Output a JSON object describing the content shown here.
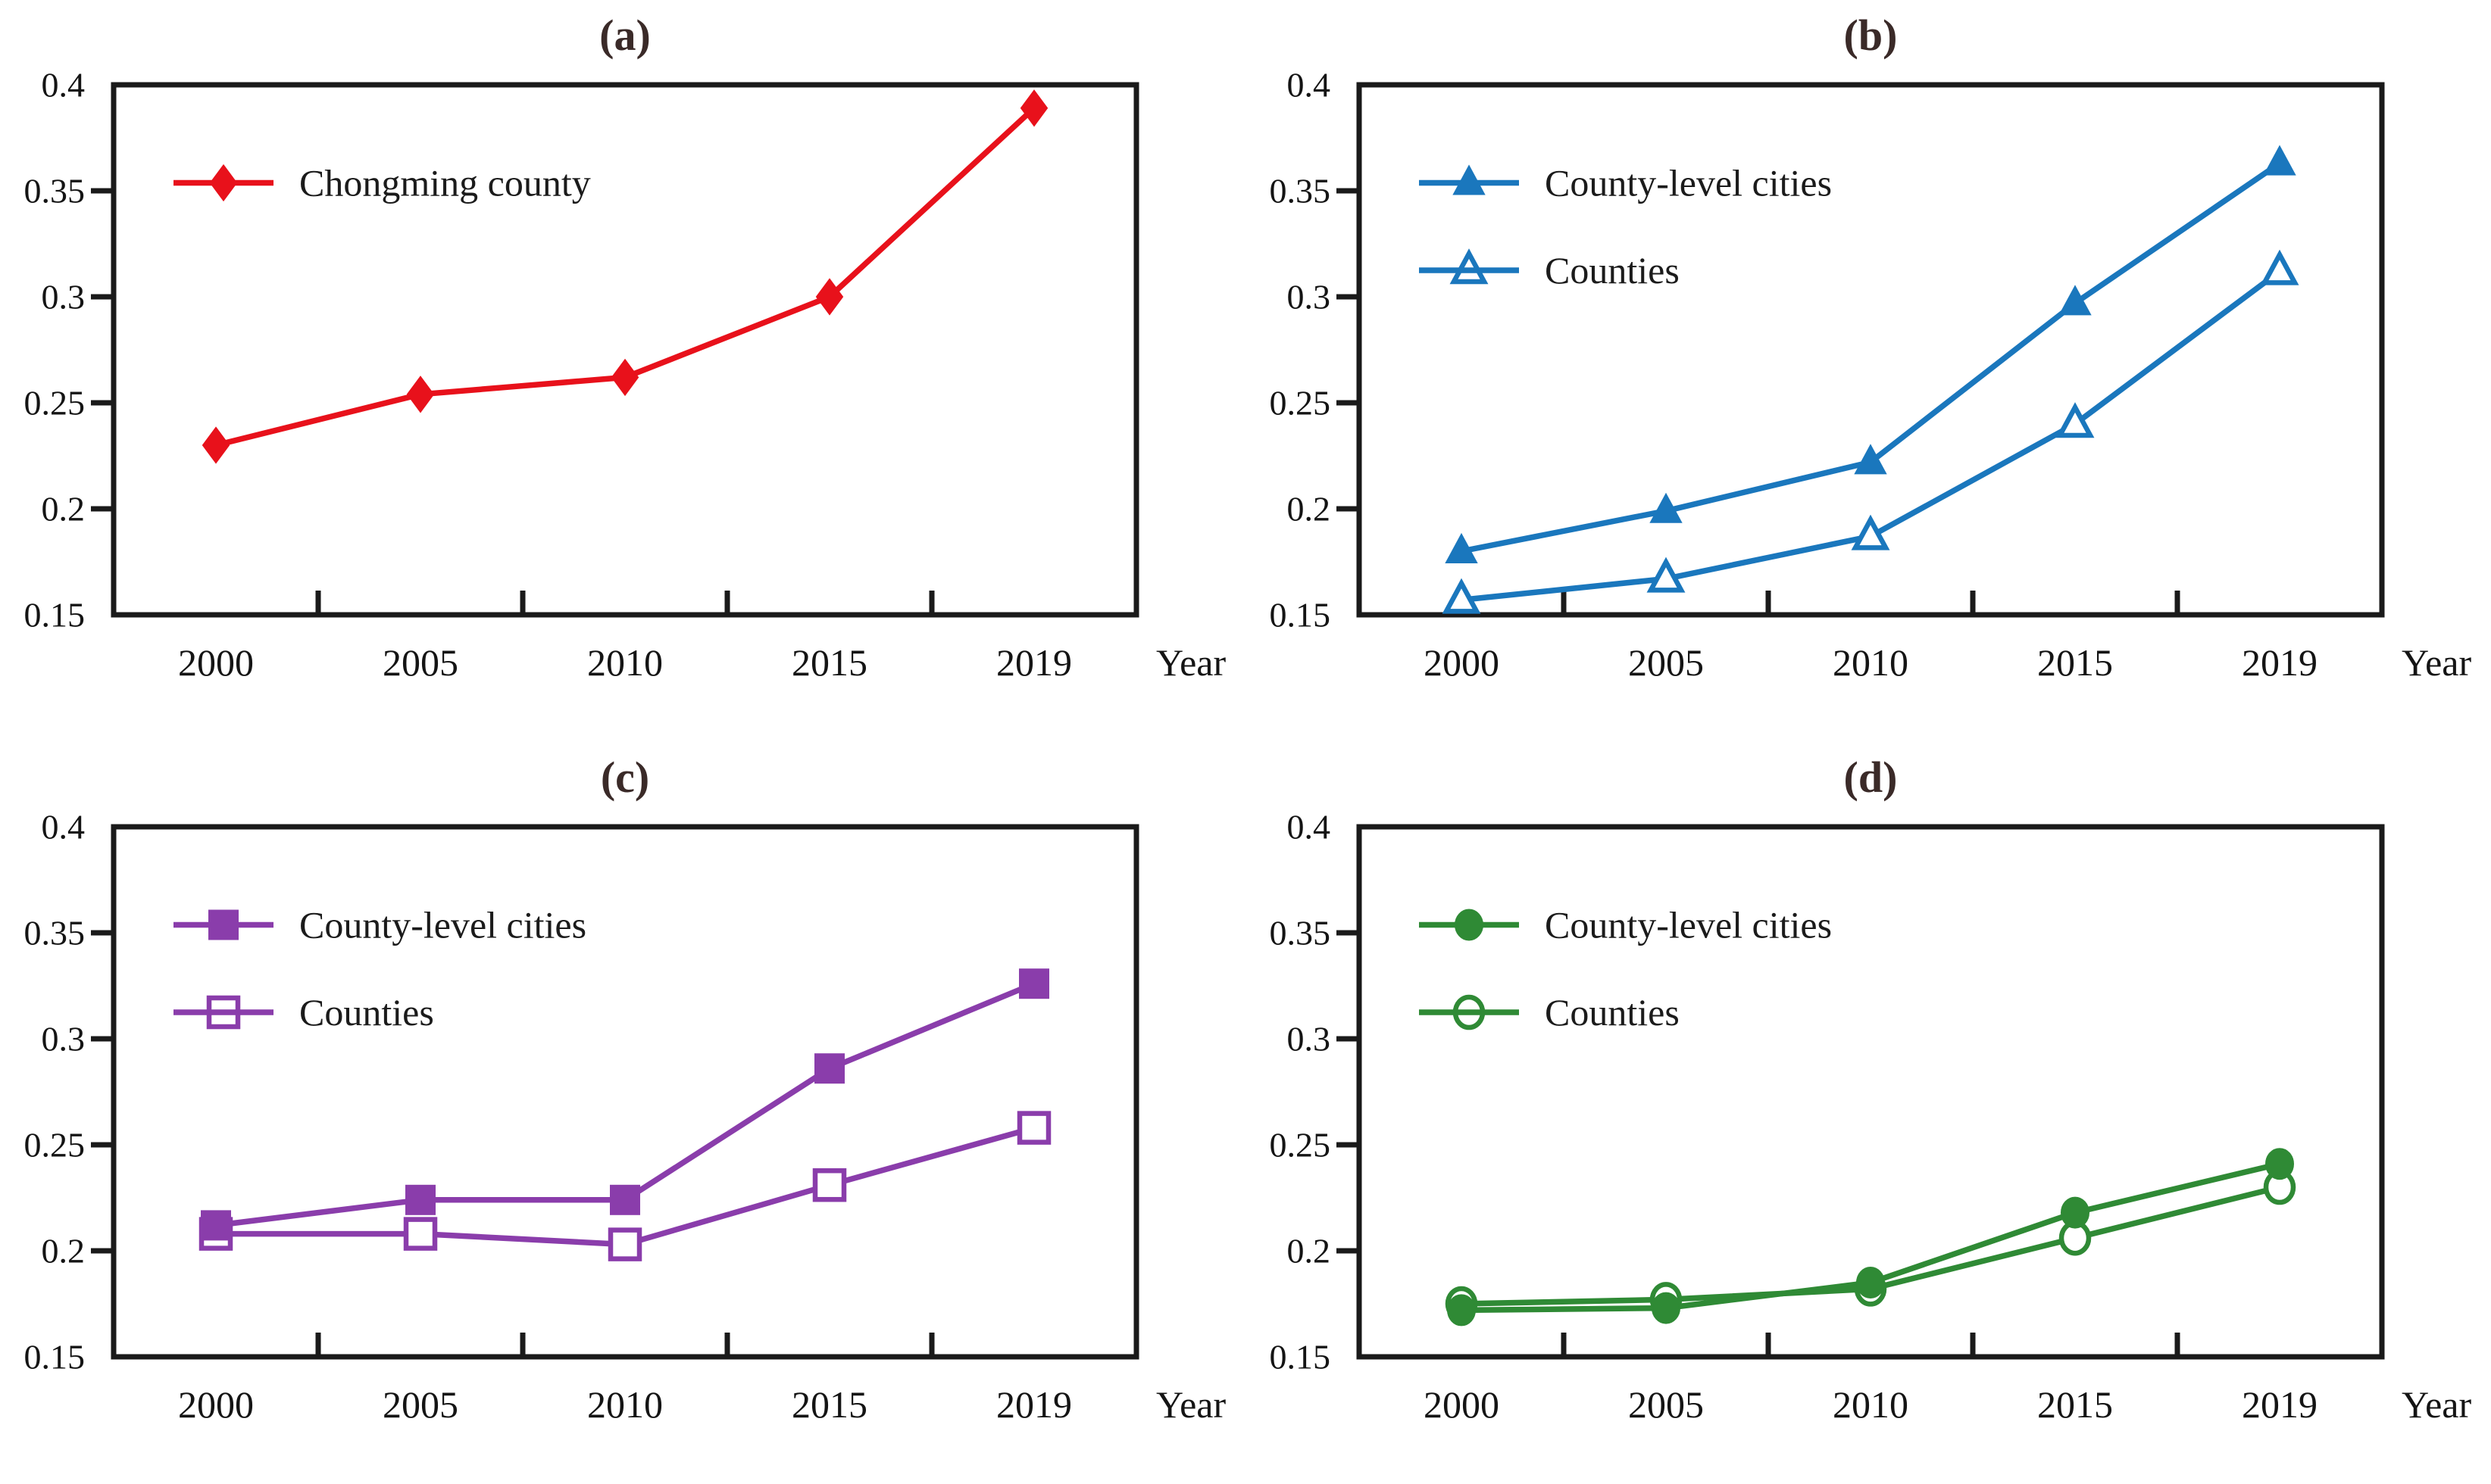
{
  "figure": {
    "background": "#ffffff",
    "axis_color": "#1a1a1a",
    "text_color": "#141414",
    "title_color": "#3a2a28"
  },
  "chart_data": [
    {
      "id": "a",
      "title": "(a)",
      "type": "line",
      "categories": [
        "2000",
        "2005",
        "2010",
        "2015",
        "2019"
      ],
      "xlabel": "Year",
      "ylabel": "",
      "ylim": [
        0.15,
        0.4
      ],
      "y_tick_step": 0.05,
      "y_tick_labels": [
        "0.4",
        "0.35",
        "0.3",
        "0.25",
        "0.2",
        "0.15"
      ],
      "grid": false,
      "legend_position": "upper-left-inside",
      "series": [
        {
          "name": "Chongming county",
          "color": "#e8111b",
          "marker": "diamond",
          "marker_fill": "filled",
          "values": [
            0.23,
            0.254,
            0.262,
            0.3,
            0.389
          ]
        }
      ]
    },
    {
      "id": "b",
      "title": "(b)",
      "type": "line",
      "categories": [
        "2000",
        "2005",
        "2010",
        "2015",
        "2019"
      ],
      "xlabel": "Year",
      "ylabel": "",
      "ylim": [
        0.15,
        0.4
      ],
      "y_tick_step": 0.05,
      "y_tick_labels": [
        "0.4",
        "0.35",
        "0.3",
        "0.25",
        "0.2",
        "0.15"
      ],
      "grid": false,
      "legend_position": "upper-left-inside",
      "series": [
        {
          "name": "County-level cities",
          "color": "#1a77bd",
          "marker": "triangle",
          "marker_fill": "filled",
          "values": [
            0.18,
            0.199,
            0.222,
            0.297,
            0.363
          ]
        },
        {
          "name": "Counties",
          "color": "#1a77bd",
          "marker": "triangle",
          "marker_fill": "open",
          "values": [
            0.157,
            0.167,
            0.187,
            0.24,
            0.312
          ]
        }
      ]
    },
    {
      "id": "c",
      "title": "(c)",
      "type": "line",
      "categories": [
        "2000",
        "2005",
        "2010",
        "2015",
        "2019"
      ],
      "xlabel": "Year",
      "ylabel": "",
      "ylim": [
        0.15,
        0.4
      ],
      "y_tick_step": 0.05,
      "y_tick_labels": [
        "0.4",
        "0.35",
        "0.3",
        "0.25",
        "0.2",
        "0.15"
      ],
      "grid": false,
      "legend_position": "upper-left-inside",
      "series": [
        {
          "name": "County-level cities",
          "color": "#8a3dab",
          "marker": "square",
          "marker_fill": "filled",
          "values": [
            0.212,
            0.224,
            0.224,
            0.286,
            0.326
          ]
        },
        {
          "name": "Counties",
          "color": "#8a3dab",
          "marker": "square",
          "marker_fill": "open",
          "values": [
            0.208,
            0.208,
            0.203,
            0.231,
            0.258
          ]
        }
      ]
    },
    {
      "id": "d",
      "title": "(d)",
      "type": "line",
      "categories": [
        "2000",
        "2005",
        "2010",
        "2015",
        "2019"
      ],
      "xlabel": "Year",
      "ylabel": "",
      "ylim": [
        0.15,
        0.4
      ],
      "y_tick_step": 0.05,
      "y_tick_labels": [
        "0.4",
        "0.35",
        "0.3",
        "0.25",
        "0.2",
        "0.15"
      ],
      "grid": false,
      "legend_position": "upper-left-inside",
      "series": [
        {
          "name": "County-level cities",
          "color": "#2f8a35",
          "marker": "circle",
          "marker_fill": "filled",
          "values": [
            0.172,
            0.173,
            0.185,
            0.218,
            0.241
          ]
        },
        {
          "name": "Counties",
          "color": "#2f8a35",
          "marker": "circle",
          "marker_fill": "open",
          "values": [
            0.175,
            0.177,
            0.182,
            0.206,
            0.23
          ]
        }
      ]
    }
  ]
}
